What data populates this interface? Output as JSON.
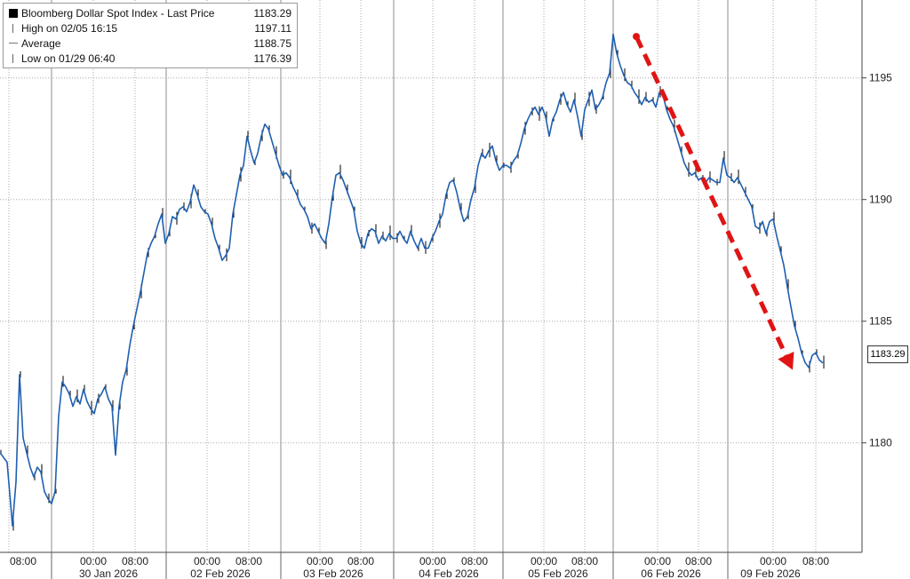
{
  "legend": {
    "title": "Bloomberg Dollar Spot Index - Last Price",
    "title_value": "1183.29",
    "high_label": "High on 02/05 16:15",
    "high_value": "1197.11",
    "avg_label": "Average",
    "avg_value": "1188.75",
    "low_label": "Low on 01/29 06:40",
    "low_value": "1176.39"
  },
  "last_price_tag": "1183.29",
  "colors": {
    "series": "#1f5fb0",
    "candles": "#000000",
    "arrow": "#e01414",
    "grid": "#9a9a9a"
  },
  "chart_data": {
    "type": "line",
    "title": "Bloomberg Dollar Spot Index - Last Price",
    "ylim": [
      1175.5,
      1198
    ],
    "yticks": [
      1180,
      1185,
      1190,
      1195
    ],
    "x_tick_labels": [
      "08:00",
      "00:00",
      "08:00",
      "00:00",
      "08:00",
      "00:00",
      "08:00",
      "00:00",
      "08:00",
      "00:00",
      "08:00",
      "00:00",
      "08:00",
      "00:00",
      "08:00"
    ],
    "day_labels": [
      "30 Jan 2026",
      "02 Feb 2026",
      "03 Feb 2026",
      "04 Feb 2026",
      "05 Feb 2026",
      "06 Feb 2026",
      "09 Feb 2026"
    ],
    "grid": true,
    "series": [
      {
        "name": "Bloomberg Dollar Spot Index - Last Price",
        "x": [
          0,
          8,
          14,
          18,
          22,
          26,
          30,
          34,
          38,
          42,
          46,
          50,
          54,
          58,
          62,
          66,
          70,
          74,
          78,
          82,
          86,
          90,
          94,
          98,
          102,
          106,
          110,
          114,
          118,
          122,
          126,
          130,
          134,
          138,
          142,
          146,
          150,
          154,
          158,
          162,
          166,
          170,
          174,
          178,
          182,
          186,
          190,
          194,
          198,
          202,
          206,
          210,
          214,
          218,
          222,
          226,
          230,
          234,
          238,
          242,
          246,
          250,
          254,
          258,
          262,
          266,
          270,
          274,
          278,
          282,
          286,
          290,
          294,
          298,
          302,
          306,
          310,
          314,
          318,
          322,
          326,
          330,
          334,
          338,
          342,
          346,
          350,
          354,
          358,
          362,
          366,
          370,
          374,
          378,
          382,
          386,
          390,
          394,
          398,
          402,
          406,
          410,
          414,
          418,
          422,
          426,
          430,
          434,
          438,
          442,
          446,
          450,
          454,
          458,
          462,
          466,
          470,
          474,
          478,
          482,
          486,
          490,
          494,
          498,
          502,
          506,
          510,
          514,
          518,
          522,
          526,
          530,
          534,
          538,
          542,
          546,
          550,
          554,
          558,
          562,
          566,
          570,
          574,
          578,
          582,
          586,
          590,
          594,
          598,
          602,
          606,
          610,
          614,
          618,
          622,
          626,
          630,
          634,
          638,
          642,
          646,
          650,
          654,
          658,
          662,
          666,
          670,
          674,
          678,
          682,
          686,
          690,
          694,
          698,
          702,
          706,
          710,
          714,
          718,
          722,
          726,
          730,
          734,
          738,
          742,
          746,
          750,
          754,
          758,
          762,
          766,
          770,
          774,
          778,
          782,
          786,
          790,
          794,
          798,
          802,
          806,
          810,
          814,
          818,
          822,
          826,
          830,
          834,
          838,
          842,
          846,
          850,
          854,
          858,
          862,
          866,
          870,
          874,
          878,
          882,
          886,
          890,
          894,
          898,
          902,
          906,
          910,
          914,
          918,
          922,
          926
        ],
        "values": [
          1179.6,
          1179.2,
          1176.6,
          1178.4,
          1182.8,
          1180.2,
          1179.6,
          1179.0,
          1178.6,
          1179.0,
          1178.8,
          1178.0,
          1177.7,
          1177.5,
          1178.0,
          1181.1,
          1182.5,
          1182.3,
          1182.0,
          1181.5,
          1181.9,
          1181.6,
          1182.2,
          1181.7,
          1181.4,
          1181.2,
          1181.8,
          1182.0,
          1182.3,
          1181.8,
          1181.5,
          1179.5,
          1181.5,
          1182.5,
          1183.0,
          1184.0,
          1184.8,
          1185.5,
          1186.2,
          1187.0,
          1187.8,
          1188.2,
          1188.5,
          1189.0,
          1189.4,
          1188.2,
          1188.6,
          1189.3,
          1189.2,
          1189.6,
          1189.7,
          1189.5,
          1189.9,
          1190.6,
          1190.2,
          1189.7,
          1189.5,
          1189.4,
          1189.0,
          1188.4,
          1188.0,
          1187.5,
          1187.7,
          1188.0,
          1189.4,
          1190.2,
          1191.0,
          1191.4,
          1192.6,
          1192.0,
          1191.5,
          1191.9,
          1192.6,
          1193.1,
          1192.9,
          1192.4,
          1191.9,
          1191.4,
          1191.0,
          1191.1,
          1190.9,
          1190.5,
          1190.2,
          1189.8,
          1189.6,
          1189.3,
          1188.8,
          1189.0,
          1188.7,
          1188.4,
          1188.2,
          1189.0,
          1190.1,
          1191.0,
          1191.1,
          1190.8,
          1190.4,
          1190.0,
          1189.6,
          1188.7,
          1188.2,
          1188.0,
          1188.6,
          1188.8,
          1188.7,
          1188.2,
          1188.5,
          1188.3,
          1188.6,
          1188.4,
          1188.4,
          1188.7,
          1188.4,
          1188.2,
          1188.7,
          1188.3,
          1188.0,
          1188.4,
          1188.0,
          1188.0,
          1188.4,
          1188.7,
          1189.1,
          1189.4,
          1190.2,
          1190.7,
          1190.8,
          1190.3,
          1189.6,
          1189.1,
          1189.3,
          1190.0,
          1190.5,
          1191.4,
          1191.9,
          1191.7,
          1192.0,
          1192.2,
          1191.6,
          1191.2,
          1191.4,
          1191.4,
          1191.3,
          1191.6,
          1191.8,
          1192.3,
          1192.9,
          1193.3,
          1193.6,
          1193.8,
          1193.5,
          1193.8,
          1193.4,
          1192.6,
          1193.3,
          1193.6,
          1194.1,
          1194.4,
          1193.9,
          1193.6,
          1194.1,
          1193.4,
          1192.6,
          1193.7,
          1194.1,
          1194.5,
          1193.7,
          1193.9,
          1194.2,
          1194.8,
          1195.2,
          1196.8,
          1196.0,
          1195.5,
          1195.1,
          1194.8,
          1194.7,
          1194.4,
          1194.2,
          1193.9,
          1194.2,
          1194.0,
          1194.1,
          1193.8,
          1194.4,
          1194.3,
          1193.7,
          1193.3,
          1193.0,
          1192.5,
          1192.0,
          1191.5,
          1191.2,
          1191.0,
          1191.1,
          1190.8,
          1190.9,
          1190.7,
          1190.9,
          1190.8,
          1190.7,
          1190.7,
          1191.7,
          1191.0,
          1190.9,
          1190.7,
          1190.9,
          1190.6,
          1190.3,
          1190.0,
          1189.7,
          1188.9,
          1188.8,
          1189.1,
          1188.6,
          1189.1,
          1189.2,
          1188.5,
          1187.9,
          1187.3,
          1186.4,
          1185.6,
          1184.8,
          1184.3,
          1183.7,
          1183.3,
          1183.1,
          1183.6,
          1183.7,
          1183.4,
          1183.29
        ]
      }
    ],
    "annotations": [
      {
        "type": "arrow",
        "from": [
          716,
          1196.7
        ],
        "to": [
          892,
          1183.0
        ],
        "style": "dashed-red"
      }
    ]
  }
}
